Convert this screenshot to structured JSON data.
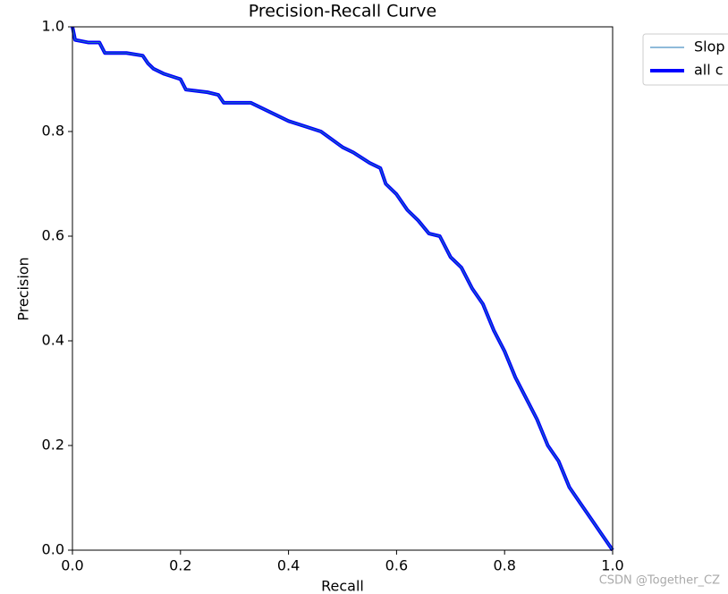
{
  "chart_data": {
    "type": "line",
    "title": "Precision-Recall Curve",
    "xlabel": "Recall",
    "ylabel": "Precision",
    "x": [
      0,
      0.005,
      0.03,
      0.05,
      0.06,
      0.1,
      0.13,
      0.14,
      0.15,
      0.17,
      0.2,
      0.21,
      0.25,
      0.27,
      0.28,
      0.33,
      0.35,
      0.38,
      0.4,
      0.43,
      0.46,
      0.48,
      0.5,
      0.52,
      0.55,
      0.57,
      0.58,
      0.6,
      0.62,
      0.64,
      0.66,
      0.68,
      0.7,
      0.72,
      0.74,
      0.76,
      0.78,
      0.8,
      0.82,
      0.84,
      0.86,
      0.88,
      0.9,
      0.92,
      0.94,
      0.96,
      0.98,
      1.0
    ],
    "series": [
      {
        "name": "Slop",
        "color": "#1f77b4",
        "width": 1,
        "values": [
          1.0,
          0.975,
          0.97,
          0.97,
          0.95,
          0.95,
          0.945,
          0.93,
          0.92,
          0.91,
          0.9,
          0.88,
          0.875,
          0.87,
          0.855,
          0.855,
          0.845,
          0.83,
          0.82,
          0.81,
          0.8,
          0.785,
          0.77,
          0.76,
          0.74,
          0.73,
          0.7,
          0.68,
          0.65,
          0.63,
          0.605,
          0.6,
          0.56,
          0.54,
          0.5,
          0.47,
          0.42,
          0.38,
          0.33,
          0.29,
          0.25,
          0.2,
          0.17,
          0.12,
          0.09,
          0.06,
          0.03,
          0.0
        ]
      },
      {
        "name": "all c",
        "color": "#0000ff",
        "width": 4,
        "values": [
          1.0,
          0.975,
          0.97,
          0.97,
          0.95,
          0.95,
          0.945,
          0.93,
          0.92,
          0.91,
          0.9,
          0.88,
          0.875,
          0.87,
          0.855,
          0.855,
          0.845,
          0.83,
          0.82,
          0.81,
          0.8,
          0.785,
          0.77,
          0.76,
          0.74,
          0.73,
          0.7,
          0.68,
          0.65,
          0.63,
          0.605,
          0.6,
          0.56,
          0.54,
          0.5,
          0.47,
          0.42,
          0.38,
          0.33,
          0.29,
          0.25,
          0.2,
          0.17,
          0.12,
          0.09,
          0.06,
          0.03,
          0.0
        ]
      }
    ],
    "xlim": [
      0,
      1
    ],
    "ylim": [
      0,
      1
    ],
    "xticks": [
      {
        "value": 0,
        "label": "0.0"
      },
      {
        "value": 0.2,
        "label": "0.2"
      },
      {
        "value": 0.4,
        "label": "0.4"
      },
      {
        "value": 0.6,
        "label": "0.6"
      },
      {
        "value": 0.8,
        "label": "0.8"
      },
      {
        "value": 1,
        "label": "1.0"
      }
    ],
    "yticks": [
      {
        "value": 0,
        "label": "0.0"
      },
      {
        "value": 0.2,
        "label": "0.2"
      },
      {
        "value": 0.4,
        "label": "0.4"
      },
      {
        "value": 0.6,
        "label": "0.6"
      },
      {
        "value": 0.8,
        "label": "0.8"
      },
      {
        "value": 1,
        "label": "1.0"
      }
    ],
    "grid": false,
    "legend": "upper right outside",
    "watermark": "CSDN @Together_CZ"
  }
}
